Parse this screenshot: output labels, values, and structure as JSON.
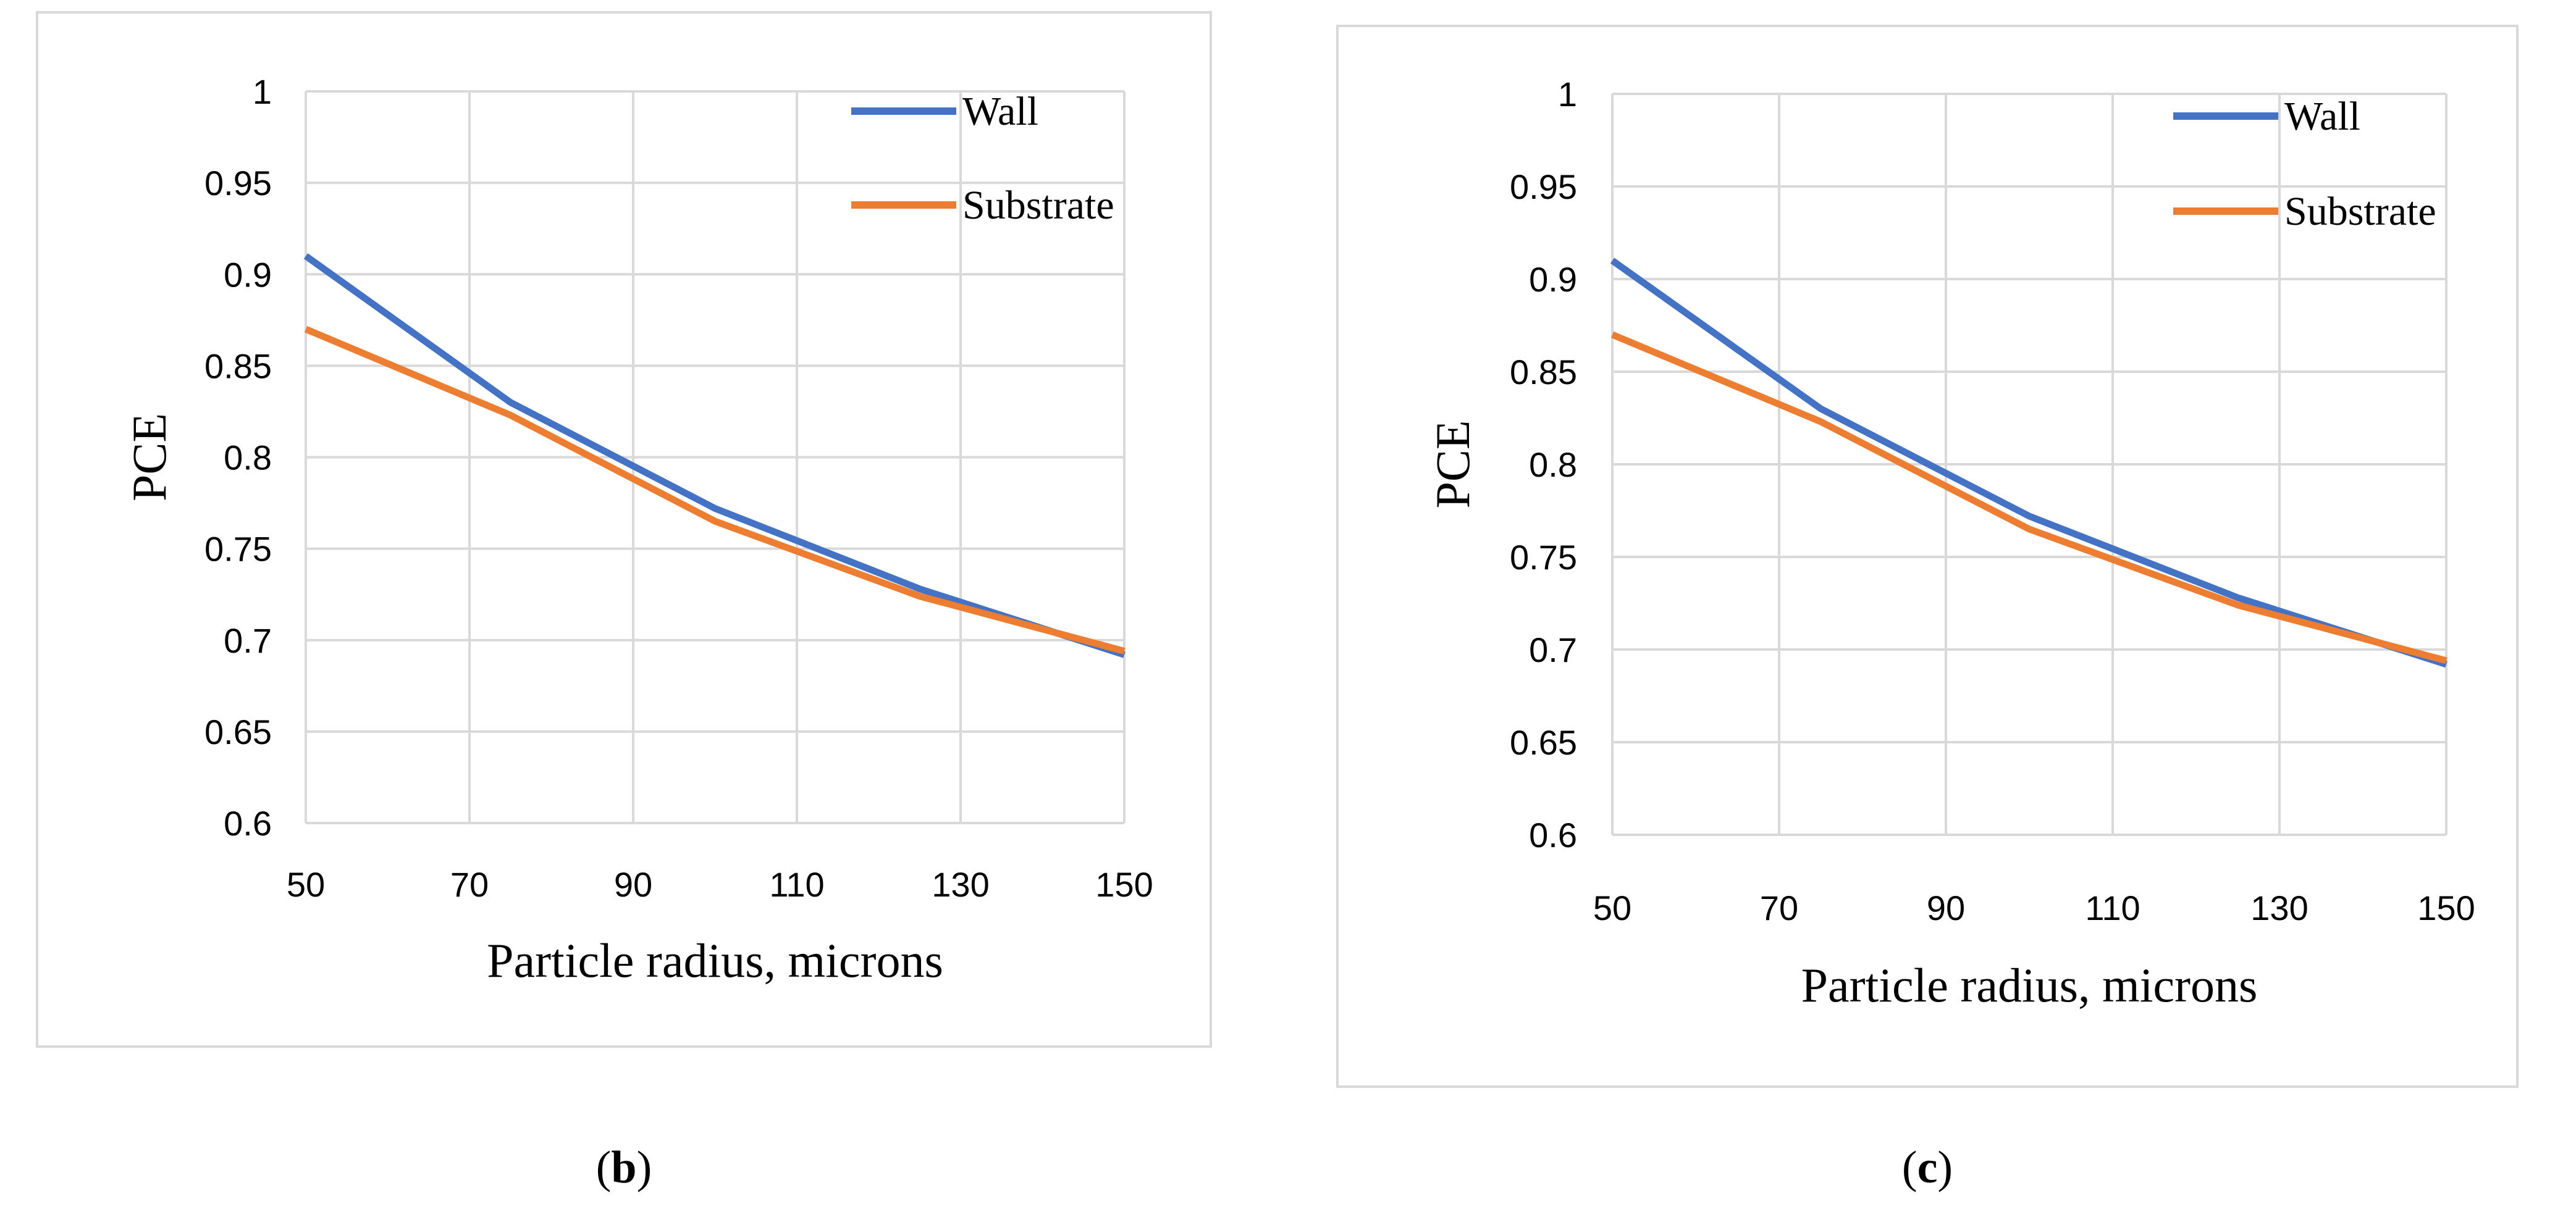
{
  "chart_data": [
    {
      "type": "line",
      "caption_letter": "b",
      "ylabel": "PCE",
      "xlabel": "Particle radius, microns",
      "xlim": [
        50,
        150
      ],
      "ylim": [
        0.6,
        1
      ],
      "x_ticks": [
        50,
        70,
        90,
        110,
        130,
        150
      ],
      "x_tick_labels": [
        "50",
        "70",
        "90",
        "110",
        "130",
        "150"
      ],
      "y_ticks": [
        0.6,
        0.65,
        0.7,
        0.75,
        0.8,
        0.85,
        0.9,
        0.95,
        1
      ],
      "y_tick_labels": [
        "0.6",
        "0.65",
        "0.7",
        "0.75",
        "0.8",
        "0.85",
        "0.9",
        "0.95",
        "1"
      ],
      "grid": true,
      "legend_position": "top-right",
      "series": [
        {
          "name": "Wall",
          "color": "#4472c4",
          "x": [
            50,
            75,
            100,
            125,
            150
          ],
          "y": [
            0.91,
            0.83,
            0.772,
            0.728,
            0.692
          ]
        },
        {
          "name": "Substrate",
          "color": "#ed7d31",
          "x": [
            50,
            75,
            100,
            125,
            150
          ],
          "y": [
            0.87,
            0.823,
            0.765,
            0.724,
            0.694
          ]
        }
      ]
    },
    {
      "type": "line",
      "caption_letter": "c",
      "ylabel": "PCE",
      "xlabel": "Particle radius, microns",
      "xlim": [
        50,
        150
      ],
      "ylim": [
        0.6,
        1
      ],
      "x_ticks": [
        50,
        70,
        90,
        110,
        130,
        150
      ],
      "x_tick_labels": [
        "50",
        "70",
        "90",
        "110",
        "130",
        "150"
      ],
      "y_ticks": [
        0.6,
        0.65,
        0.7,
        0.75,
        0.8,
        0.85,
        0.9,
        0.95,
        1
      ],
      "y_tick_labels": [
        "0.6",
        "0.65",
        "0.7",
        "0.75",
        "0.8",
        "0.85",
        "0.9",
        "0.95",
        "1"
      ],
      "grid": true,
      "legend_position": "top-right",
      "series": [
        {
          "name": "Wall",
          "color": "#4472c4",
          "x": [
            50,
            75,
            100,
            125,
            150
          ],
          "y": [
            0.91,
            0.83,
            0.772,
            0.728,
            0.692
          ]
        },
        {
          "name": "Substrate",
          "color": "#ed7d31",
          "x": [
            50,
            75,
            100,
            125,
            150
          ],
          "y": [
            0.87,
            0.823,
            0.765,
            0.724,
            0.694
          ]
        }
      ]
    }
  ]
}
